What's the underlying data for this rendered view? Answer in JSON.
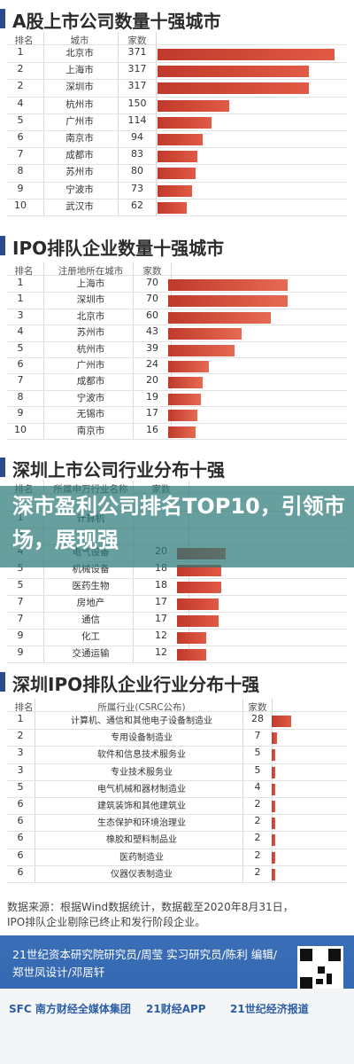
{
  "overlay_caption": "深市盈利公司排名TOP10，引领市场，展现强",
  "charts": [
    {
      "title": "A股上市公司数量十强城市",
      "headers": [
        "排名",
        "城市",
        "家数"
      ],
      "rows": [
        {
          "rank": "1",
          "label": "北京市",
          "value": 371
        },
        {
          "rank": "2",
          "label": "上海市",
          "value": 317
        },
        {
          "rank": "2",
          "label": "深圳市",
          "value": 317
        },
        {
          "rank": "4",
          "label": "杭州市",
          "value": 150
        },
        {
          "rank": "5",
          "label": "广州市",
          "value": 114
        },
        {
          "rank": "6",
          "label": "南京市",
          "value": 94
        },
        {
          "rank": "7",
          "label": "成都市",
          "value": 83
        },
        {
          "rank": "8",
          "label": "苏州市",
          "value": 80
        },
        {
          "rank": "9",
          "label": "宁波市",
          "value": 73
        },
        {
          "rank": "10",
          "label": "武汉市",
          "value": 62
        }
      ]
    },
    {
      "title": "IPO排队企业数量十强城市",
      "headers": [
        "排名",
        "注册地所在城市",
        "家数"
      ],
      "rows": [
        {
          "rank": "1",
          "label": "上海市",
          "value": 70
        },
        {
          "rank": "1",
          "label": "深圳市",
          "value": 70
        },
        {
          "rank": "3",
          "label": "北京市",
          "value": 60
        },
        {
          "rank": "4",
          "label": "苏州市",
          "value": 43
        },
        {
          "rank": "5",
          "label": "杭州市",
          "value": 39
        },
        {
          "rank": "6",
          "label": "广州市",
          "value": 24
        },
        {
          "rank": "7",
          "label": "成都市",
          "value": 20
        },
        {
          "rank": "8",
          "label": "宁波市",
          "value": 19
        },
        {
          "rank": "9",
          "label": "无锡市",
          "value": 17
        },
        {
          "rank": "10",
          "label": "南京市",
          "value": 16
        }
      ]
    },
    {
      "title": "深圳上市公司行业分布十强",
      "headers": [
        "排名",
        "所属申万行业名称",
        "家数"
      ],
      "rows": [
        {
          "rank": "",
          "label": "",
          "value": null
        },
        {
          "rank": "1",
          "label": "计算机",
          "value": null
        },
        {
          "rank": "3",
          "label": "",
          "value": null
        },
        {
          "rank": "4",
          "label": "电气设备",
          "value": 20
        },
        {
          "rank": "5",
          "label": "机械设备",
          "value": 18
        },
        {
          "rank": "5",
          "label": "医药生物",
          "value": 18
        },
        {
          "rank": "7",
          "label": "房地产",
          "value": 17
        },
        {
          "rank": "7",
          "label": "通信",
          "value": 17
        },
        {
          "rank": "9",
          "label": "化工",
          "value": 12
        },
        {
          "rank": "9",
          "label": "交通运输",
          "value": 12
        }
      ]
    },
    {
      "title": "深圳IPO排队企业行业分布十强",
      "headers": [
        "排名",
        "所属行业(CSRC公布)",
        "家数"
      ],
      "rows": [
        {
          "rank": "1",
          "label": "计算机、通信和其他电子设备制造业",
          "value": 28
        },
        {
          "rank": "2",
          "label": "专用设备制造业",
          "value": 7
        },
        {
          "rank": "3",
          "label": "软件和信息技术服务业",
          "value": 5
        },
        {
          "rank": "3",
          "label": "专业技术服务业",
          "value": 5
        },
        {
          "rank": "5",
          "label": "电气机械和器材制造业",
          "value": 4
        },
        {
          "rank": "6",
          "label": "建筑装饰和其他建筑业",
          "value": 2
        },
        {
          "rank": "6",
          "label": "生态保护和环境治理业",
          "value": 2
        },
        {
          "rank": "6",
          "label": "橡胶和塑料制品业",
          "value": 2
        },
        {
          "rank": "6",
          "label": "医药制造业",
          "value": 2
        },
        {
          "rank": "6",
          "label": "仪器仪表制造业",
          "value": 2
        }
      ]
    }
  ],
  "chart_data": [
    {
      "type": "bar",
      "title": "A股上市公司数量十强城市",
      "categories": [
        "北京市",
        "上海市",
        "深圳市",
        "杭州市",
        "广州市",
        "南京市",
        "成都市",
        "苏州市",
        "宁波市",
        "武汉市"
      ],
      "values": [
        371,
        317,
        317,
        150,
        114,
        94,
        83,
        80,
        73,
        62
      ]
    },
    {
      "type": "bar",
      "title": "IPO排队企业数量十强城市",
      "categories": [
        "上海市",
        "深圳市",
        "北京市",
        "苏州市",
        "杭州市",
        "广州市",
        "成都市",
        "宁波市",
        "无锡市",
        "南京市"
      ],
      "values": [
        70,
        70,
        60,
        43,
        39,
        24,
        20,
        19,
        17,
        16
      ]
    },
    {
      "type": "bar",
      "title": "深圳上市公司行业分布十强",
      "categories": [
        "电气设备",
        "机械设备",
        "医药生物",
        "房地产",
        "通信",
        "化工",
        "交通运输"
      ],
      "values": [
        20,
        18,
        18,
        17,
        17,
        12,
        12
      ]
    },
    {
      "type": "bar",
      "title": "深圳IPO排队企业行业分布十强",
      "categories": [
        "计算机、通信和其他电子设备制造业",
        "专用设备制造业",
        "软件和信息技术服务业",
        "专业技术服务业",
        "电气机械和器材制造业",
        "建筑装饰和其他建筑业",
        "生态保护和环境治理业",
        "橡胶和塑料制品业",
        "医药制造业",
        "仪器仪表制造业"
      ],
      "values": [
        28,
        7,
        5,
        5,
        4,
        2,
        2,
        2,
        2,
        2
      ]
    }
  ],
  "footer": {
    "line1": "数据来源：根据Wind数据统计，数据截至2020年8月31日，",
    "line2": "IPO排队企业剔除已终止和发行阶段企业。"
  },
  "credits": {
    "text": "21世纪资本研究院研究员/周莹 实习研究员/陈利 编辑/郑世凤设计/邓居轩"
  },
  "logos": [
    "SFC 南方财经全媒体集团",
    "21财经APP",
    "21世纪经济报道"
  ],
  "colors": {
    "bar": "#d9473a",
    "title_bar": "#2b4c8c",
    "footer_bg": "#3a6fb8"
  }
}
